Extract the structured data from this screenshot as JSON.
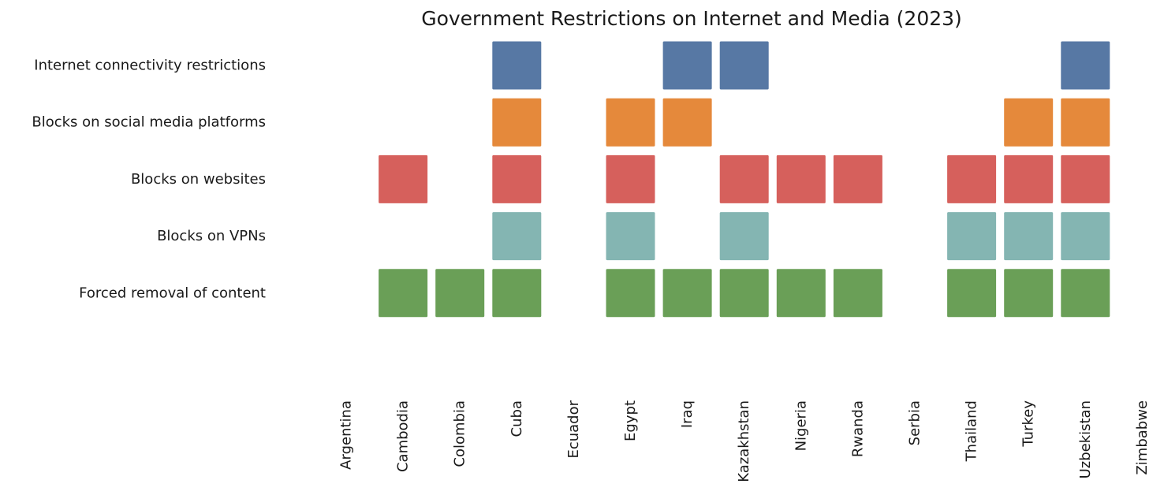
{
  "chart_data": {
    "type": "heatmap",
    "title": "Government Restrictions on Internet and Media (2023)",
    "xlabel": "",
    "ylabel": "",
    "grid": false,
    "legend": "none",
    "categories": [
      "Argentina",
      "Cambodia",
      "Colombia",
      "Cuba",
      "Ecuador",
      "Egypt",
      "Iraq",
      "Kazakhstan",
      "Nigeria",
      "Rwanda",
      "Serbia",
      "Thailand",
      "Turkey",
      "Uzbekistan",
      "Zimbabwe"
    ],
    "rows": [
      {
        "label": "Internet connectivity restrictions",
        "color": "#5778a4",
        "values": [
          0,
          0,
          0,
          1,
          0,
          0,
          1,
          1,
          0,
          0,
          0,
          0,
          0,
          1,
          0
        ]
      },
      {
        "label": "Blocks on social media platforms",
        "color": "#e5893b",
        "values": [
          0,
          0,
          0,
          1,
          0,
          1,
          1,
          0,
          0,
          0,
          0,
          0,
          1,
          1,
          0
        ]
      },
      {
        "label": "Blocks on websites",
        "color": "#d6605c",
        "values": [
          0,
          1,
          0,
          1,
          0,
          1,
          0,
          1,
          1,
          1,
          0,
          1,
          1,
          1,
          0
        ]
      },
      {
        "label": "Blocks on VPNs",
        "color": "#84b5b2",
        "values": [
          0,
          0,
          0,
          1,
          0,
          1,
          0,
          1,
          0,
          0,
          0,
          1,
          1,
          1,
          0
        ]
      },
      {
        "label": "Forced removal of content",
        "color": "#6a9f57",
        "values": [
          0,
          1,
          1,
          1,
          0,
          1,
          1,
          1,
          1,
          1,
          0,
          1,
          1,
          1,
          0
        ]
      }
    ]
  }
}
